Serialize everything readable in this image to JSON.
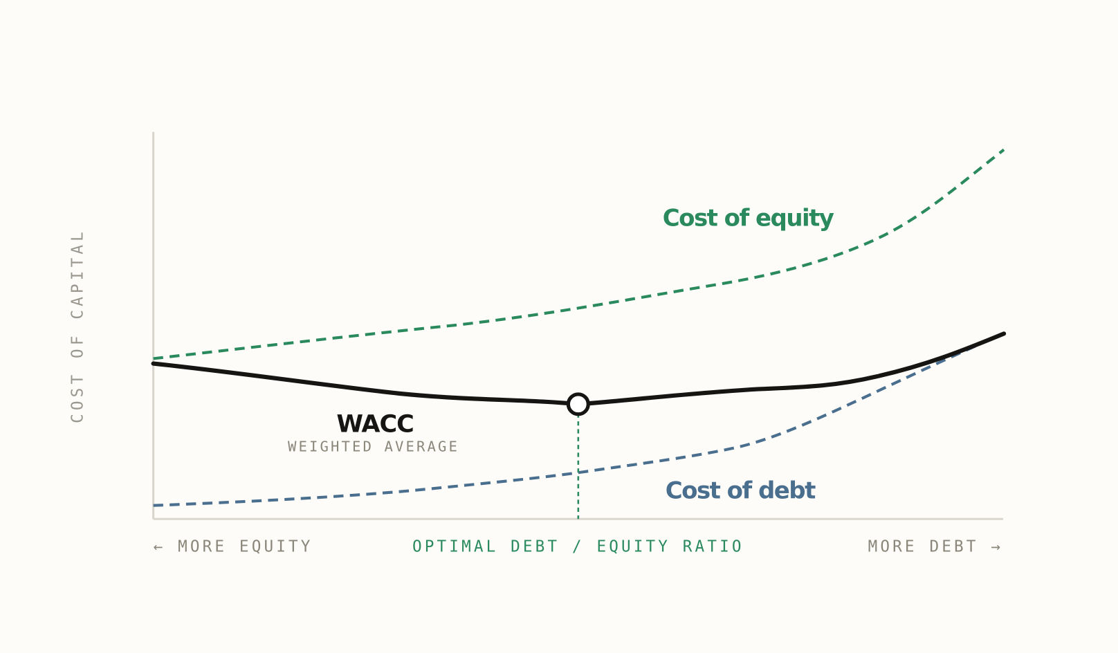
{
  "y_axis_label": "COST OF CAPITAL",
  "curves": {
    "equity": "Cost of equity",
    "debt": "Cost of debt",
    "wacc": "WACC",
    "wacc_subtitle": "WEIGHTED AVERAGE"
  },
  "x_axis": {
    "left": "← MORE EQUITY",
    "center": "OPTIMAL DEBT / EQUITY RATIO",
    "right": "MORE DEBT →"
  }
}
